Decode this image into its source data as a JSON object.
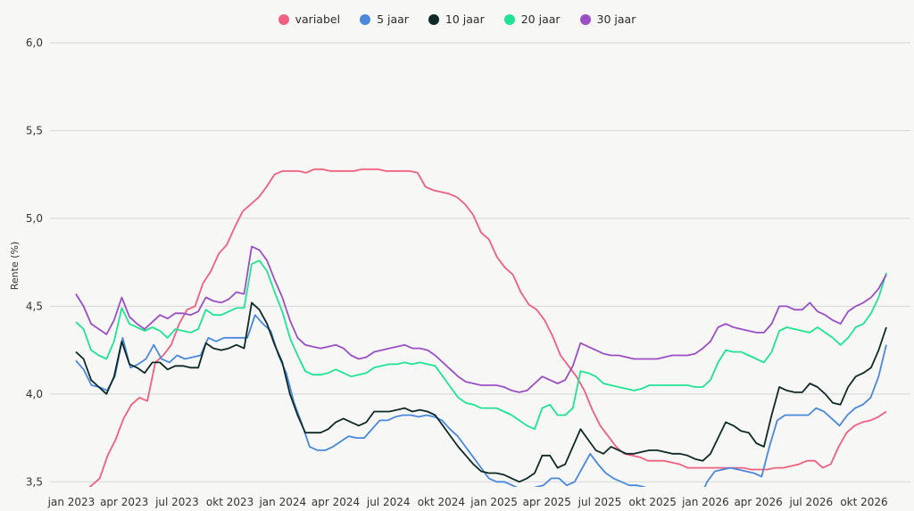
{
  "chart_data": {
    "type": "line",
    "ylabel": "Rente (%)",
    "ylim": [
      3.4,
      6.0
    ],
    "y_ticks": [
      "6,0",
      "5,5",
      "5,0",
      "4,5",
      "4,0",
      "3,5"
    ],
    "x_ticks": [
      "jan 2023",
      "apr 2023",
      "jul 2023",
      "okt 2023",
      "jan 2024",
      "apr 2024",
      "jul 2024",
      "okt 2024",
      "jan 2025",
      "apr 2025",
      "jul 2025",
      "okt 2025",
      "jan 2026",
      "apr 2026",
      "jul 2026",
      "okt 2026"
    ],
    "grid": true,
    "legend_position": "top-center",
    "series": [
      {
        "name": "variabel",
        "color": "#f0607f",
        "values": [
          3.39,
          3.44,
          3.48,
          3.52,
          3.65,
          3.74,
          3.86,
          3.94,
          3.98,
          3.96,
          4.18,
          4.22,
          4.28,
          4.4,
          4.48,
          4.5,
          4.63,
          4.7,
          4.8,
          4.85,
          4.95,
          5.04,
          5.08,
          5.12,
          5.18,
          5.25,
          5.27,
          5.27,
          5.27,
          5.26,
          5.28,
          5.28,
          5.27,
          5.27,
          5.27,
          5.27,
          5.28,
          5.28,
          5.28,
          5.27,
          5.27,
          5.27,
          5.27,
          5.26,
          5.18,
          5.16,
          5.15,
          5.14,
          5.12,
          5.08,
          5.02,
          4.92,
          4.88,
          4.78,
          4.72,
          4.68,
          4.58,
          4.51,
          4.48,
          4.42,
          4.33,
          4.22,
          4.16,
          4.1,
          4.02,
          3.91,
          3.82,
          3.76,
          3.7,
          3.66,
          3.65,
          3.64,
          3.62,
          3.62,
          3.62,
          3.61,
          3.6,
          3.58,
          3.58,
          3.58,
          3.58,
          3.58,
          3.58,
          3.58,
          3.58,
          3.57,
          3.57,
          3.57,
          3.58,
          3.58,
          3.59,
          3.6,
          3.62,
          3.62,
          3.58,
          3.6,
          3.7,
          3.78,
          3.82,
          3.84,
          3.85,
          3.87,
          3.9
        ]
      },
      {
        "name": "5 jaar",
        "color": "#4a88de",
        "values": [
          4.19,
          4.14,
          4.05,
          4.04,
          4.02,
          4.1,
          4.32,
          4.15,
          4.17,
          4.2,
          4.28,
          4.2,
          4.18,
          4.22,
          4.2,
          4.21,
          4.22,
          4.32,
          4.3,
          4.32,
          4.32,
          4.32,
          4.32,
          4.45,
          4.4,
          4.36,
          4.22,
          4.12,
          3.95,
          3.83,
          3.7,
          3.68,
          3.68,
          3.7,
          3.73,
          3.76,
          3.75,
          3.75,
          3.8,
          3.85,
          3.85,
          3.87,
          3.88,
          3.88,
          3.87,
          3.88,
          3.87,
          3.85,
          3.8,
          3.76,
          3.7,
          3.64,
          3.58,
          3.52,
          3.5,
          3.5,
          3.48,
          3.46,
          3.45,
          3.47,
          3.48,
          3.52,
          3.52,
          3.48,
          3.5,
          3.58,
          3.66,
          3.6,
          3.55,
          3.52,
          3.5,
          3.48,
          3.48,
          3.47,
          3.45,
          3.45,
          3.45,
          3.42,
          3.4,
          3.38,
          3.4,
          3.5,
          3.56,
          3.57,
          3.58,
          3.57,
          3.56,
          3.55,
          3.53,
          3.7,
          3.85,
          3.88,
          3.88,
          3.88,
          3.88,
          3.92,
          3.9,
          3.86,
          3.82,
          3.88,
          3.92,
          3.94,
          3.98,
          4.1,
          4.28
        ]
      },
      {
        "name": "10 jaar",
        "color": "#0e2a26",
        "values": [
          4.24,
          4.2,
          4.08,
          4.04,
          4.0,
          4.1,
          4.3,
          4.17,
          4.15,
          4.12,
          4.18,
          4.18,
          4.14,
          4.16,
          4.16,
          4.15,
          4.15,
          4.29,
          4.26,
          4.25,
          4.26,
          4.28,
          4.26,
          4.52,
          4.48,
          4.4,
          4.28,
          4.18,
          4.0,
          3.88,
          3.78,
          3.78,
          3.78,
          3.8,
          3.84,
          3.86,
          3.84,
          3.82,
          3.84,
          3.9,
          3.9,
          3.9,
          3.91,
          3.92,
          3.9,
          3.91,
          3.9,
          3.88,
          3.82,
          3.76,
          3.7,
          3.65,
          3.6,
          3.56,
          3.55,
          3.55,
          3.54,
          3.52,
          3.5,
          3.52,
          3.55,
          3.65,
          3.65,
          3.58,
          3.6,
          3.7,
          3.8,
          3.74,
          3.68,
          3.66,
          3.7,
          3.68,
          3.66,
          3.66,
          3.67,
          3.68,
          3.68,
          3.67,
          3.66,
          3.66,
          3.65,
          3.63,
          3.62,
          3.66,
          3.75,
          3.84,
          3.82,
          3.79,
          3.78,
          3.72,
          3.7,
          3.88,
          4.04,
          4.02,
          4.01,
          4.01,
          4.06,
          4.04,
          4.0,
          3.95,
          3.94,
          4.04,
          4.1,
          4.12,
          4.15,
          4.25,
          4.38
        ]
      },
      {
        "name": "20 jaar",
        "color": "#1fe494",
        "values": [
          4.41,
          4.37,
          4.25,
          4.22,
          4.2,
          4.3,
          4.49,
          4.4,
          4.38,
          4.36,
          4.38,
          4.36,
          4.32,
          4.37,
          4.36,
          4.35,
          4.37,
          4.48,
          4.45,
          4.45,
          4.47,
          4.49,
          4.49,
          4.74,
          4.76,
          4.7,
          4.58,
          4.47,
          4.32,
          4.22,
          4.13,
          4.11,
          4.11,
          4.12,
          4.14,
          4.12,
          4.1,
          4.11,
          4.12,
          4.15,
          4.16,
          4.17,
          4.17,
          4.18,
          4.17,
          4.18,
          4.17,
          4.16,
          4.1,
          4.04,
          3.98,
          3.95,
          3.94,
          3.92,
          3.92,
          3.92,
          3.9,
          3.88,
          3.85,
          3.82,
          3.8,
          3.92,
          3.94,
          3.88,
          3.88,
          3.92,
          4.13,
          4.12,
          4.1,
          4.06,
          4.05,
          4.04,
          4.03,
          4.02,
          4.03,
          4.05,
          4.05,
          4.05,
          4.05,
          4.05,
          4.05,
          4.04,
          4.04,
          4.08,
          4.18,
          4.25,
          4.24,
          4.24,
          4.22,
          4.2,
          4.18,
          4.24,
          4.36,
          4.38,
          4.37,
          4.36,
          4.35,
          4.38,
          4.35,
          4.32,
          4.28,
          4.32,
          4.38,
          4.4,
          4.46,
          4.55,
          4.69
        ]
      },
      {
        "name": "30 jaar",
        "color": "#9a4fc6",
        "values": [
          4.57,
          4.5,
          4.4,
          4.37,
          4.34,
          4.42,
          4.55,
          4.44,
          4.4,
          4.37,
          4.41,
          4.45,
          4.43,
          4.46,
          4.46,
          4.45,
          4.47,
          4.55,
          4.53,
          4.52,
          4.54,
          4.58,
          4.57,
          4.84,
          4.82,
          4.76,
          4.65,
          4.55,
          4.42,
          4.32,
          4.28,
          4.27,
          4.26,
          4.27,
          4.28,
          4.26,
          4.22,
          4.2,
          4.21,
          4.24,
          4.25,
          4.26,
          4.27,
          4.28,
          4.26,
          4.26,
          4.25,
          4.22,
          4.18,
          4.14,
          4.1,
          4.07,
          4.06,
          4.05,
          4.05,
          4.05,
          4.04,
          4.02,
          4.01,
          4.02,
          4.06,
          4.1,
          4.08,
          4.06,
          4.08,
          4.16,
          4.29,
          4.27,
          4.25,
          4.23,
          4.22,
          4.22,
          4.21,
          4.2,
          4.2,
          4.2,
          4.2,
          4.21,
          4.22,
          4.22,
          4.22,
          4.23,
          4.26,
          4.3,
          4.38,
          4.4,
          4.38,
          4.37,
          4.36,
          4.35,
          4.35,
          4.4,
          4.5,
          4.5,
          4.48,
          4.48,
          4.52,
          4.47,
          4.45,
          4.42,
          4.4,
          4.47,
          4.5,
          4.52,
          4.55,
          4.6,
          4.68
        ]
      }
    ]
  }
}
